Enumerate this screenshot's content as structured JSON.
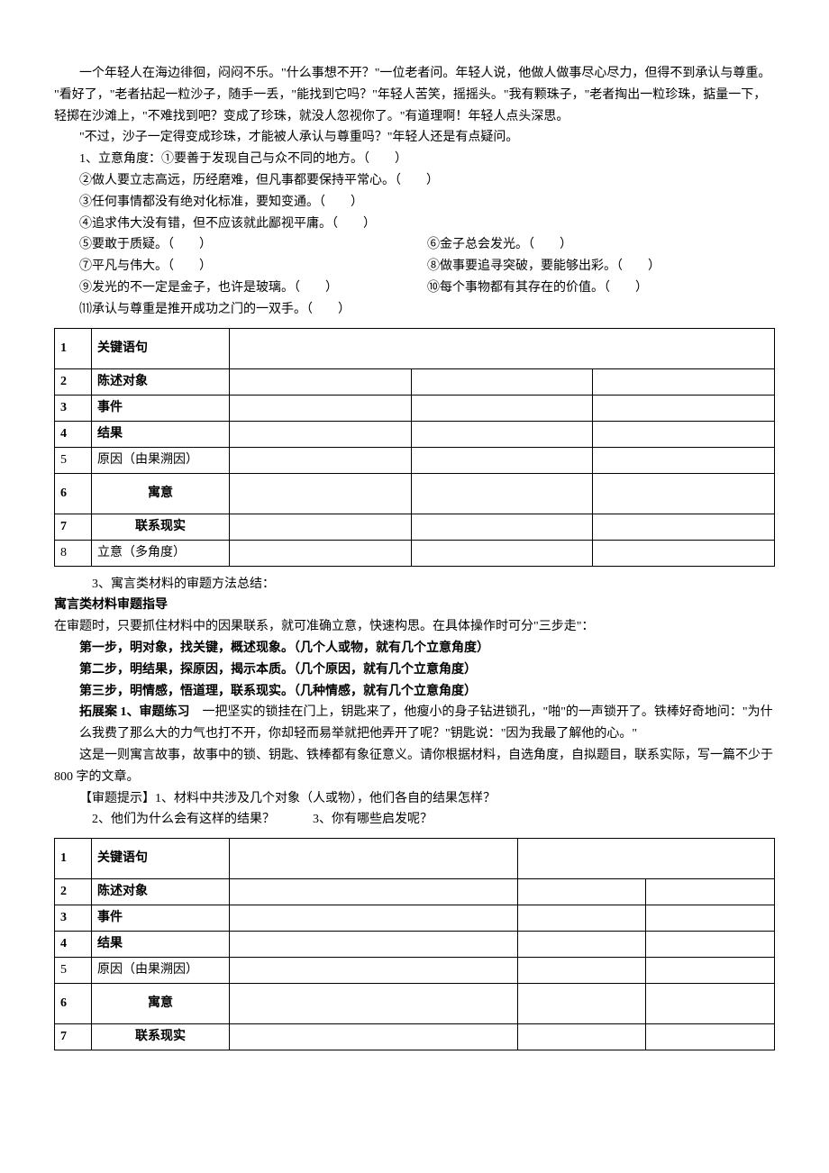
{
  "story1": {
    "p1": "一个年轻人在海边徘徊，闷闷不乐。\"什么事想不开？\"一位老者问。年轻人说，他做人做事尽心尽力，但得不到承认与尊重。  \"看好了，\"老者拈起一粒沙子，随手一丢，\"能找到它吗？\"年轻人苦笑，摇摇头。\"我有颗珠子，\"老者掏出一粒珍珠，掂量一下，轻掷在沙滩上，\"不难找到吧？变成了珍珠，就没人忽视你了。\"有道理啊！年轻人点头深思。",
    "p2": "\"不过，沙子一定得变成珍珠，才能被人承认与尊重吗？\"年轻人还是有点疑问。",
    "q_header": "1、立意角度：①要善于发现自己与众不同的地方。（　　）",
    "q2": "②做人要立志高远，历经磨难，但凡事都要保持平常心。（　　）",
    "q3": "③任何事情都没有绝对化标准，要知变通。（　　）",
    "q4": "④追求伟大没有错，但不应该就此鄙视平庸。（　　）",
    "q5l": "⑤要敢于质疑。（　　）",
    "q5r": "⑥金子总会发光。（　　）",
    "q6l": "⑦平凡与伟大。（　　）",
    "q6r": "⑧做事要追寻突破，要能够出彩。（　　）",
    "q7l": "⑨发光的不一定是金子，也许是玻璃。（　　）",
    "q7r": "⑩每个事物都有其存在的价值。（　　）",
    "q8": "⑾承认与尊重是推开成功之门的一双手。（　　）"
  },
  "table1": {
    "rows": [
      {
        "n": "1",
        "label": "关键语句",
        "bold": true,
        "tall": true,
        "cols": 1
      },
      {
        "n": "2",
        "label": "陈述对象",
        "bold": true,
        "cols": 3
      },
      {
        "n": "3",
        "label": "事件",
        "bold": true,
        "cols": 3
      },
      {
        "n": "4",
        "label": "结果",
        "bold": true,
        "cols": 3
      },
      {
        "n": "5",
        "label": "原因（由果溯因）",
        "bold": false,
        "cols": 3
      },
      {
        "n": "6",
        "label": "寓意",
        "bold": true,
        "center": true,
        "tall": true,
        "cols": 3
      },
      {
        "n": "7",
        "label": "联系现实",
        "bold": true,
        "center": true,
        "cols": 3
      },
      {
        "n": "8",
        "label": "立意（多角度）",
        "bold": false,
        "cols": 3
      }
    ]
  },
  "method": {
    "line1": "3、寓言类材料的审题方法总结：",
    "title": "寓言类材料审题指导",
    "intro": "在审题时，只要抓住材料中的因果联系，就可准确立意，快速构思。在具体操作时可分\"三步走\"：",
    "step1": "第一步，明对象，找关键，概述现象。（几个人或物，就有几个立意角度）",
    "step2": "第二步，明结果，探原因，揭示本质。（几个原因，就有几个立意角度）",
    "step3": "第三步，明情感，悟道理，联系现实。（几种情感，就有几个立意角度）",
    "ext_label": "拓展案 1、审题练习",
    "ext_story": "　一把坚实的锁挂在门上，钥匙来了，他瘦小的身子钻进锁孔，\"啪\"的一声锁开了。铁棒好奇地问：\"为什么我费了那么大的力气也打不开，你却轻而易举就把他弄开了呢？\"钥匙说：\"因为我最了解他的心。\"",
    "ext_p2": "这是一则寓言故事，故事中的锁、钥匙、铁棒都有象征意义。请你根据材料，自选角度，自拟题目，联系实际，写一篇不少于 800 字的文章。",
    "hint1": "【审题提示】1、材料中共涉及几个对象（人或物），他们各自的结果怎样？",
    "hint2": "2、他们为什么会有这样的结果？　　　3、你有哪些启发呢？"
  },
  "table2": {
    "rows": [
      {
        "n": "1",
        "label": "关键语句",
        "bold": true,
        "tall": true,
        "cols": 2
      },
      {
        "n": "2",
        "label": "陈述对象",
        "bold": true,
        "cols": 3
      },
      {
        "n": "3",
        "label": "事件",
        "bold": true,
        "cols": 3
      },
      {
        "n": "4",
        "label": "结果",
        "bold": true,
        "cols": 3
      },
      {
        "n": "5",
        "label": "原因（由果溯因）",
        "bold": false,
        "cols": 3
      },
      {
        "n": "6",
        "label": "寓意",
        "bold": true,
        "center": true,
        "tall": true,
        "cols": 3
      },
      {
        "n": "7",
        "label": "联系现实",
        "bold": true,
        "center": true,
        "cols": 3
      }
    ]
  }
}
